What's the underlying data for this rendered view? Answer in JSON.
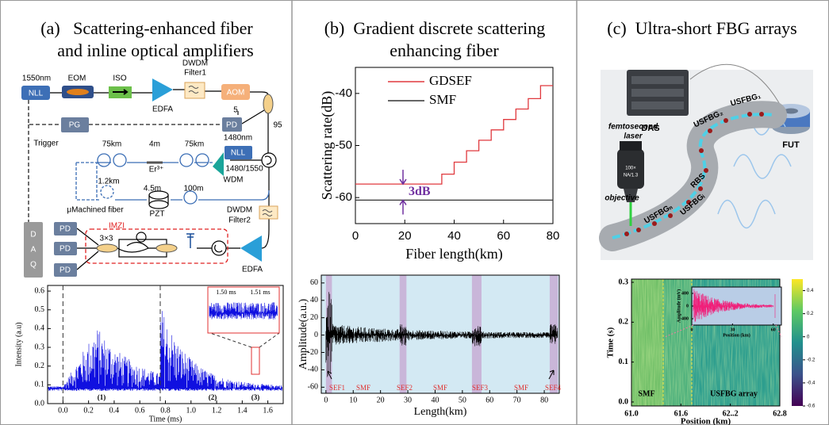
{
  "panel_a": {
    "title": [
      "(a)   Scattering-enhanced fiber",
      "and inline optical amplifiers"
    ],
    "setup_labels": [
      "1550nm",
      "NLL",
      "EOM",
      "ISO",
      "EDFA",
      "DWDM",
      "Filter1",
      "AOM",
      "5",
      "PD",
      "95",
      "PG",
      "Trigger",
      "1480nm",
      "NLL",
      "75km",
      "4m",
      "75km",
      "Er³⁺",
      "1480/1550",
      "WDM",
      "1.2km",
      "4.5m",
      "100m",
      "μMachined fiber",
      "PZT",
      "DWDM",
      "Filter2",
      "IMZI",
      "3×3",
      "EDFA",
      "PD",
      "PD",
      "PD",
      "D",
      "A",
      "Q"
    ],
    "chart": {
      "type": "line",
      "ylabel": "Intensity (a.u)",
      "xlabel": "Time (ms)",
      "xlim": [
        -0.12,
        1.72
      ],
      "ylim": [
        0,
        0.63
      ],
      "xticks": [
        {
          "value": 0,
          "label": "0.0"
        },
        0.2,
        0.4,
        0.6,
        0.8,
        {
          "value": 1,
          "label": "1.0"
        },
        1.2,
        1.4,
        1.6
      ],
      "yticks": [
        {
          "value": 0,
          "label": "0.0"
        },
        0.1,
        0.2,
        0.3,
        0.4,
        0.5,
        0.6
      ],
      "annotations": [
        "(1)",
        "(2)",
        "(3)"
      ],
      "inset_labels": [
        "1.50 ms",
        "1.51 ms"
      ]
    }
  },
  "panel_b": {
    "title": [
      "(b)  Gradient discrete scattering",
      "enhancing fiber"
    ],
    "chart_top": {
      "type": "line",
      "ylabel": "Scattering rate(dB)",
      "xlabel": "Fiber length(km)",
      "xlim": [
        0,
        80
      ],
      "ylim": [
        -65,
        -35
      ],
      "xticks": [
        0,
        20,
        40,
        60,
        80
      ],
      "yticks": [
        -60,
        -50,
        -40
      ],
      "legend": "upper left",
      "annotation": "3dB",
      "series": [
        {
          "name": "GDSEF",
          "color": "#e0393e",
          "x": [
            0,
            35,
            35,
            40,
            40,
            45,
            45,
            50,
            50,
            55,
            55,
            60,
            60,
            65,
            65,
            70,
            70,
            75,
            75,
            80
          ],
          "values": [
            -57.4,
            -57.4,
            -55.5,
            -55.5,
            -53.2,
            -53.2,
            -51,
            -51,
            -49,
            -49,
            -47,
            -47,
            -45,
            -45,
            -43,
            -43,
            -41,
            -41,
            -38.5,
            -38.5
          ]
        },
        {
          "name": "SMF",
          "color": "#333333",
          "x": [
            0,
            80
          ],
          "values": [
            -60.5,
            -60.5
          ]
        }
      ]
    },
    "chart_bottom": {
      "type": "line",
      "ylabel": "Amplitude(a.u.)",
      "xlabel": "Length(km)",
      "xlim": [
        -1.7,
        85.5
      ],
      "ylim": [
        -67,
        69
      ],
      "xticks": [
        0,
        10,
        20,
        30,
        40,
        50,
        60,
        70,
        80
      ],
      "yticks": [
        -60,
        -40,
        -20,
        0,
        20,
        40,
        60
      ],
      "shaded_regions": [
        [
          0,
          2.2
        ],
        [
          27,
          29.5
        ],
        [
          53.5,
          57
        ],
        [
          82,
          85
        ]
      ],
      "segment_labels": [
        "SEF1",
        "SMF",
        "SEF2",
        "SMF",
        "SEF3",
        "SMF",
        "SEF4"
      ]
    }
  },
  "panel_c": {
    "title": "(c)  Ultra-short FBG arrays",
    "illustration_labels": [
      "DAS",
      "FUT",
      "femtosecond",
      "laser",
      "objective",
      "USFBG₁",
      "USFBG₂",
      "RBS",
      "USFBGᵢ",
      "USFBGₙ",
      "100×",
      "NA/1.3"
    ],
    "chart": {
      "type": "heatmap",
      "ylabel": "Time (s)",
      "xlabel": "Position (km)",
      "xlim": [
        61,
        62.8
      ],
      "ylim": [
        -0.01,
        0.308
      ],
      "xticks": [
        {
          "value": 61,
          "label": "61.0"
        },
        61.6,
        {
          "value": 62.2,
          "label": "62..2"
        },
        62.8
      ],
      "yticks": [
        {
          "value": 0,
          "label": "0.0"
        },
        0.1,
        0.2,
        0.3
      ],
      "region_labels": [
        "SMF",
        "USFBG array"
      ],
      "colorbar": {
        "clim": [
          -0.6,
          0.5
        ],
        "ticks": [
          0.4,
          0.2,
          0,
          -0.2,
          -0.4,
          -0.6
        ]
      },
      "inset": {
        "ylabel": "Amplitude (mV)",
        "xlabel": "Position (km)",
        "xlim": [
          0,
          66
        ],
        "ylim": [
          -600,
          600
        ],
        "xticks": [
          0,
          30,
          60
        ],
        "yticks": [
          400,
          0,
          -400
        ]
      }
    }
  }
}
